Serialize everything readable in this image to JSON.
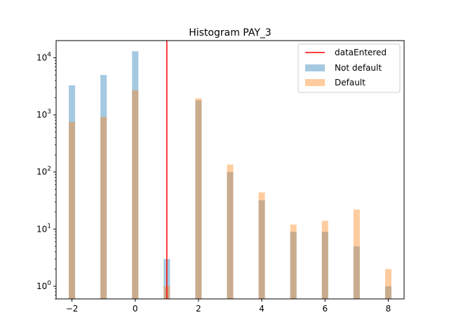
{
  "chart_data": {
    "type": "bar",
    "title": "Histogram PAY_3",
    "xlabel": "",
    "ylabel": "",
    "yscale": "log",
    "xlim": [
      -2.5,
      8.5
    ],
    "ylim": [
      0.6,
      20000
    ],
    "x_ticks": [
      -2,
      0,
      2,
      4,
      6,
      8
    ],
    "x_tick_labels": [
      "−2",
      "0",
      "2",
      "4",
      "6",
      "8"
    ],
    "y_ticks": [
      1,
      10,
      100,
      1000,
      10000
    ],
    "y_tick_base": "10",
    "y_tick_exponents": [
      "0",
      "1",
      "2",
      "3",
      "4"
    ],
    "bin_width": 0.2,
    "x": [
      -2,
      -1,
      0,
      1,
      2,
      3,
      4,
      5,
      6,
      7,
      8
    ],
    "series": [
      {
        "name": "Not default",
        "color": "#1f77b4",
        "alpha": 0.4,
        "values": [
          3300,
          5000,
          13000,
          3,
          1800,
          100,
          32,
          9,
          9,
          5,
          1
        ]
      },
      {
        "name": "Default",
        "color": "#ff7f0e",
        "alpha": 0.4,
        "values": [
          750,
          920,
          2700,
          1,
          1950,
          135,
          44,
          12,
          14,
          22,
          2
        ]
      }
    ],
    "vline": {
      "name": "dataEntered",
      "x": 1,
      "color": "#ff0000"
    },
    "legend": {
      "placement": "upper right",
      "entries": [
        "dataEntered",
        "Not default",
        "Default"
      ]
    },
    "grid": false
  }
}
